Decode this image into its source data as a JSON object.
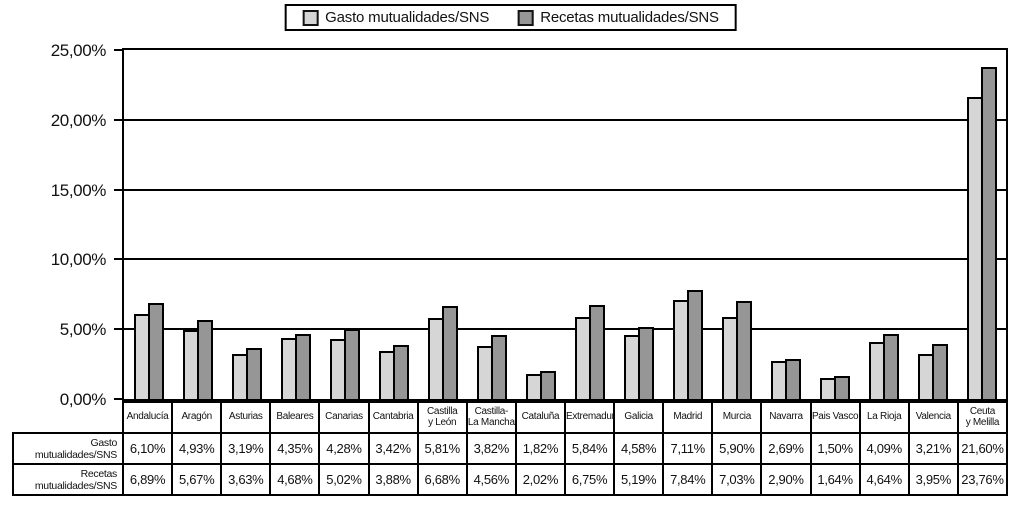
{
  "legend": {
    "items": [
      {
        "label": "Gasto mutualidades/SNS",
        "color": "#d6d6d6"
      },
      {
        "label": "Recetas mutualidades/SNS",
        "color": "#969696"
      }
    ]
  },
  "colors": {
    "bar_series1_fill": "#d6d6d6",
    "bar_series2_fill": "#969696",
    "line_and_border": "#000000",
    "background": "#ffffff"
  },
  "chart_data": {
    "type": "bar",
    "title": "",
    "xlabel": "",
    "ylabel": "",
    "categories": [
      "Andalucía",
      "Aragón",
      "Asturias",
      "Baleares",
      "Canarias",
      "Cantabria",
      "Castilla y León",
      "Castilla-La Mancha",
      "Cataluña",
      "Extremadura",
      "Galicia",
      "Madrid",
      "Murcia",
      "Navarra",
      "Pais Vasco",
      "La Rioja",
      "Valencia",
      "Ceuta y Melilla"
    ],
    "categories_display": [
      "Andalucía",
      "Aragón",
      "Asturias",
      "Baleares",
      "Canarias",
      "Cantabria",
      "Castilla\ny León",
      "Castilla-\nLa Mancha",
      "Cataluña",
      "Extremadura",
      "Galicia",
      "Madrid",
      "Murcia",
      "Navarra",
      "Pais Vasco",
      "La Rioja",
      "Valencia",
      "Ceuta\ny Melilla"
    ],
    "series": [
      {
        "name": "Gasto mutualidades/SNS",
        "values": [
          6.1,
          4.93,
          3.19,
          4.35,
          4.28,
          3.42,
          5.81,
          3.82,
          1.82,
          5.84,
          4.58,
          7.11,
          5.9,
          2.69,
          1.5,
          4.09,
          3.21,
          21.6
        ]
      },
      {
        "name": "Recetas mutualidades/SNS",
        "values": [
          6.89,
          5.67,
          3.63,
          4.68,
          5.02,
          3.88,
          6.68,
          4.56,
          2.02,
          6.75,
          5.19,
          7.84,
          7.03,
          2.9,
          1.64,
          4.64,
          3.95,
          23.76
        ]
      }
    ],
    "ylim": [
      0,
      25
    ],
    "ytick_step": 5,
    "ytick_labels": [
      "0,00%",
      "5,00%",
      "10,00%",
      "15,00%",
      "20,00%",
      "25,00%"
    ],
    "grid": true,
    "legend_position": "top-center"
  },
  "table": {
    "row_labels": [
      "Gasto mutualidades/SNS",
      "Recetas mutualidades/SNS"
    ],
    "rows": [
      [
        "6,10%",
        "4,93%",
        "3,19%",
        "4,35%",
        "4,28%",
        "3,42%",
        "5,81%",
        "3,82%",
        "1,82%",
        "5,84%",
        "4,58%",
        "7,11%",
        "5,90%",
        "2,69%",
        "1,50%",
        "4,09%",
        "3,21%",
        "21,60%"
      ],
      [
        "6,89%",
        "5,67%",
        "3,63%",
        "4,68%",
        "5,02%",
        "3,88%",
        "6,68%",
        "4,56%",
        "2,02%",
        "6,75%",
        "5,19%",
        "7,84%",
        "7,03%",
        "2,90%",
        "1,64%",
        "4,64%",
        "3,95%",
        "23,76%"
      ]
    ]
  }
}
